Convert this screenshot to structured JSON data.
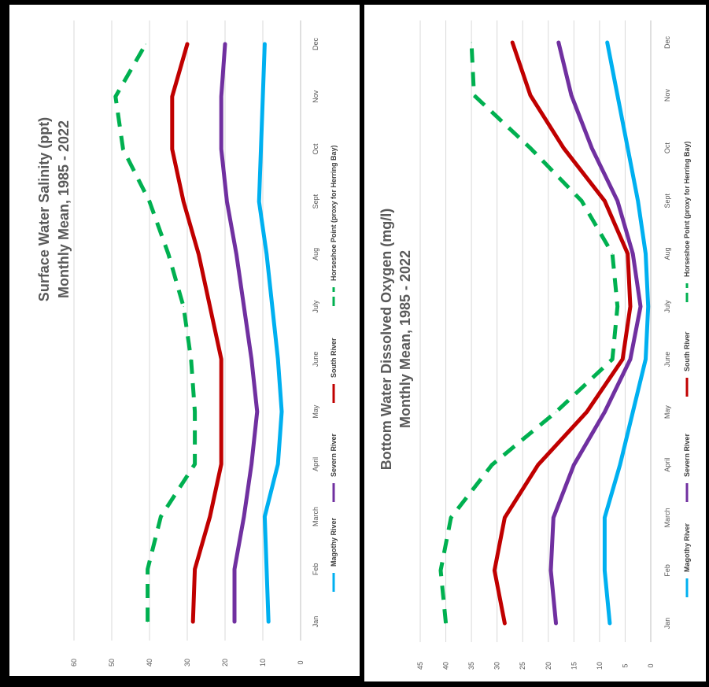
{
  "chart_data": [
    {
      "type": "line",
      "title": "Surface Water Salinity (ppt)",
      "subtitle": "Monthly Mean, 1985 - 2022",
      "categories": [
        "Jan",
        "Feb",
        "March",
        "April",
        "May",
        "June",
        "July",
        "Aug",
        "Sept",
        "Oct",
        "Nov",
        "Dec"
      ],
      "ylim": [
        0,
        60
      ],
      "yticks": [
        0,
        10,
        20,
        30,
        40,
        50,
        60
      ],
      "orientation": "rotated 90 degrees clockwise",
      "grid": true,
      "legend_position": "bottom",
      "series": [
        {
          "name": "Magothy River",
          "color": "#00b0f0",
          "dash": false,
          "values": [
            8.5,
            9,
            9.5,
            6,
            5,
            6,
            7.5,
            9,
            11,
            10.5,
            10,
            9.5
          ]
        },
        {
          "name": "Severn River",
          "color": "#7030a0",
          "dash": false,
          "values": [
            17.5,
            17.5,
            15,
            13,
            11.5,
            13,
            15,
            17,
            19.5,
            21,
            21,
            20
          ]
        },
        {
          "name": "South River",
          "color": "#c00000",
          "dash": false,
          "values": [
            28.5,
            28,
            24,
            21,
            21,
            21,
            24,
            27,
            31,
            34,
            34,
            30
          ]
        },
        {
          "name": "Horseshoe Point (proxy for Herring Bay)",
          "color": "#00b050",
          "dash": true,
          "values": [
            40.5,
            40.5,
            37,
            28,
            28,
            29,
            31,
            35,
            40,
            47,
            49,
            41
          ]
        }
      ]
    },
    {
      "type": "line",
      "title": "Bottom Water  Dissolved Oxygen (mg/l)",
      "subtitle": "Monthly Mean, 1985 - 2022",
      "categories": [
        "Jan",
        "Feb",
        "March",
        "April",
        "May",
        "June",
        "July",
        "Aug",
        "Sept",
        "Oct",
        "Nov",
        "Dec"
      ],
      "ylim": [
        0,
        45
      ],
      "yticks": [
        0,
        5,
        10,
        15,
        20,
        25,
        30,
        35,
        40,
        45
      ],
      "orientation": "rotated 90 degrees clockwise",
      "grid": true,
      "legend_position": "bottom",
      "series": [
        {
          "name": "Magothy River",
          "color": "#00b0f0",
          "dash": false,
          "values": [
            8,
            9,
            9,
            6,
            3.5,
            1,
            0.5,
            1,
            2.5,
            4.5,
            6.5,
            8.5
          ]
        },
        {
          "name": "Severn River",
          "color": "#7030a0",
          "dash": false,
          "values": [
            18.5,
            19.5,
            19,
            15,
            9,
            4,
            2,
            3.5,
            6.5,
            11.5,
            15.5,
            18
          ]
        },
        {
          "name": "South River",
          "color": "#c00000",
          "dash": false,
          "values": [
            28.5,
            30.5,
            28.5,
            22,
            12.5,
            5.5,
            4,
            4.5,
            9,
            17,
            23.5,
            27
          ]
        },
        {
          "name": "Horseshoe Point (proxy for Herring Bay)",
          "color": "#00b050",
          "dash": true,
          "values": [
            40,
            41,
            39,
            31,
            18.5,
            7.5,
            6.5,
            7.5,
            13.5,
            23.5,
            34.5,
            35
          ]
        }
      ]
    }
  ]
}
